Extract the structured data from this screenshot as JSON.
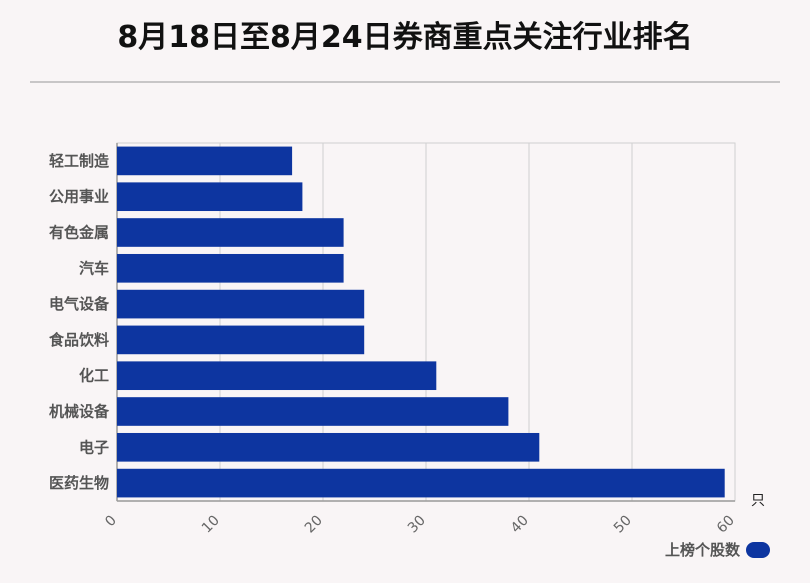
{
  "title": "8月18日至8月24日券商重点关注行业排名",
  "colors": {
    "bar": "#0d35a0",
    "grid": "#d0d0d0",
    "axis": "#999999",
    "text": "#555555"
  },
  "chart_data": {
    "type": "bar",
    "orientation": "horizontal",
    "title": "8月18日至8月24日券商重点关注行业排名",
    "categories": [
      "轻工制造",
      "公用事业",
      "有色金属",
      "汽车",
      "电气设备",
      "食品饮料",
      "化工",
      "机械设备",
      "电子",
      "医药生物"
    ],
    "series": [
      {
        "name": "上榜个股数",
        "values": [
          17,
          18,
          22,
          22,
          24,
          24,
          31,
          38,
          41,
          59
        ]
      }
    ],
    "xlim": [
      0,
      60
    ],
    "xticks": [
      "0",
      "10",
      "20",
      "30",
      "40",
      "50",
      "60"
    ],
    "xunit": "只",
    "grid": true,
    "legend": "bottom-right"
  }
}
